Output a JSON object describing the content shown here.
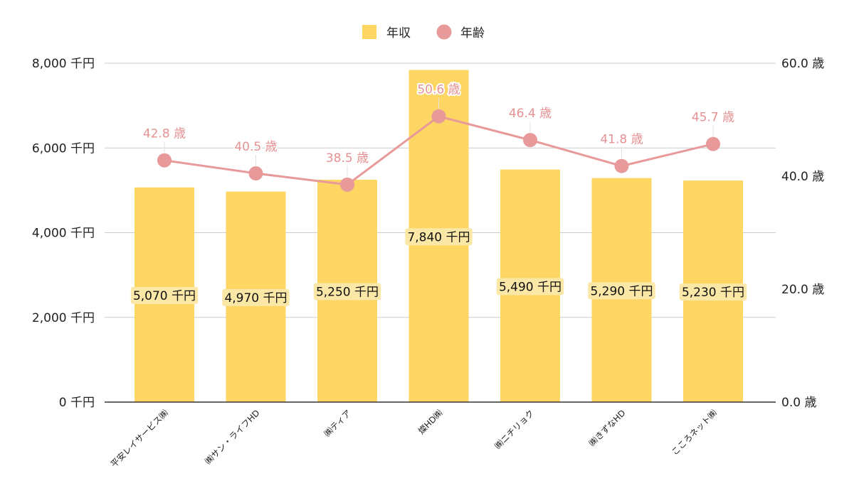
{
  "chart_data": {
    "type": "bar",
    "categories": [
      "平安レイサービス㈱",
      "㈱サン・ライフHD",
      "㈱ティア",
      "燦HD㈱",
      "㈱ニチリョク",
      "㈱きずなHD",
      "こころネット㈱"
    ],
    "series": [
      {
        "name": "年収",
        "type": "bar",
        "axis": "left",
        "values": [
          5070,
          4970,
          5250,
          7840,
          5490,
          5290,
          5230
        ],
        "labels": [
          "5,070 千円",
          "4,970 千円",
          "5,250 千円",
          "7,840 千円",
          "5,490 千円",
          "5,290 千円",
          "5,230 千円"
        ]
      },
      {
        "name": "年齢",
        "type": "line",
        "axis": "right",
        "values": [
          42.8,
          40.5,
          38.5,
          50.6,
          46.4,
          41.8,
          45.7
        ],
        "labels": [
          "42.8 歳",
          "40.5 歳",
          "38.5 歳",
          "50.6 歳",
          "46.4 歳",
          "41.8 歳",
          "45.7 歳"
        ]
      }
    ],
    "left_axis": {
      "ylim": [
        0,
        8000
      ],
      "ticks": [
        0,
        2000,
        4000,
        6000,
        8000
      ],
      "tick_labels": [
        "0 千円",
        "2,000 千円",
        "4,000 千円",
        "6,000 千円",
        "8,000 千円"
      ]
    },
    "right_axis": {
      "ylim": [
        0,
        60
      ],
      "ticks": [
        0,
        20,
        40,
        60
      ],
      "tick_labels": [
        "0.0 歳",
        "20.0 歳",
        "40.0 歳",
        "60.0 歳"
      ]
    },
    "legend": {
      "position": "top-center",
      "items": [
        "年収",
        "年齢"
      ]
    },
    "grid": true,
    "colors": {
      "bar": "#fdd663",
      "line": "#e8999a",
      "label": "#e69192",
      "grid": "#cccccc",
      "axis": "#333333"
    }
  }
}
